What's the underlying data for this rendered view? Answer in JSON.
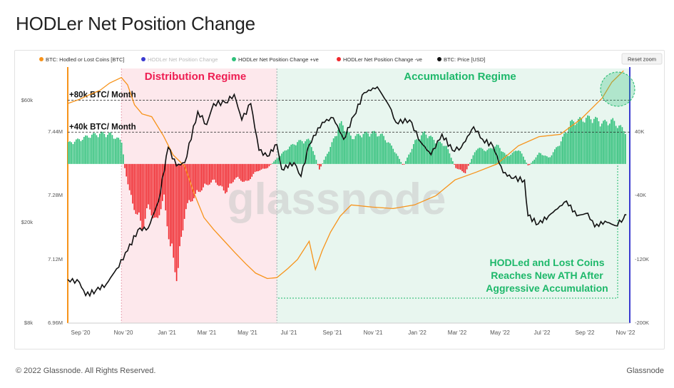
{
  "page": {
    "title": "HODLer Net Position Change",
    "footer_left": "© 2022 Glassnode. All Rights Reserved.",
    "footer_right": "Glassnode",
    "reset_zoom": "Reset zoom",
    "watermark": "glassnode"
  },
  "colors": {
    "hodl": "#f7931a",
    "pos": "#2fc07a",
    "neg": "#f0282d",
    "price": "#111111",
    "right_axis": "#3a3ad0",
    "dist_fill": "#fde8ec",
    "acc_fill": "#e8f6ef",
    "dist_text": "#ee1d52",
    "acc_text": "#1db86a"
  },
  "chart_data": {
    "type": "area",
    "legend": {
      "placement": "top-left",
      "items": [
        {
          "label": "BTC: Hodled or Lost Coins [BTC]",
          "color": "#f7931a"
        },
        {
          "label": "HODLer Net Position Change",
          "color": "#3a3ad0",
          "muted": true
        },
        {
          "label": "HODLer Net Position Change +ve",
          "color": "#2fc07a"
        },
        {
          "label": "HODLer Net Position Change -ve",
          "color": "#f0282d"
        },
        {
          "label": "BTC: Price [USD]",
          "color": "#111111"
        }
      ]
    },
    "x_ticks": [
      "Sep '20",
      "Nov '20",
      "Jan '21",
      "Mar '21",
      "May '21",
      "Jul '21",
      "Sep '21",
      "Nov '21",
      "Jan '22",
      "Mar '22",
      "May '22",
      "Jul '22",
      "Sep '22",
      "Nov '22"
    ],
    "xlim": [
      "2020-08-15",
      "2022-11-10"
    ],
    "left_axis_price": {
      "ticks": [
        "$60k",
        "$20k",
        "$8k"
      ],
      "scale": "log"
    },
    "left_axis_hodl": {
      "ticks": [
        "7.44M",
        "7.28M",
        "7.12M",
        "6.96M"
      ],
      "ylim": [
        6.96,
        7.52
      ]
    },
    "right_axis": {
      "ticks": [
        "40K",
        "-40K",
        "-120K",
        "-200K"
      ],
      "ylim": [
        -200000,
        120000
      ]
    },
    "reference_lines": [
      {
        "label": "+80k BTC/ Month",
        "value": 80000
      },
      {
        "label": "+40k BTC/ Month",
        "value": 40000
      }
    ],
    "regimes": [
      {
        "label": "Distribution Regime",
        "start": "2020-11-01",
        "end": "2021-06-15"
      },
      {
        "label": "Accumulation Regime",
        "start": "2021-06-15",
        "end": "2022-11-10"
      }
    ],
    "annotation": "HODLed and Lost Coins\nReaches New ATH After\nAggressive Accumulation",
    "series": [
      {
        "name": "BTC: Hodled or Lost Coins [BTC]",
        "axis": "hodl_millions",
        "points": [
          [
            "2020-08-15",
            7.443
          ],
          [
            "2020-09-01",
            7.452
          ],
          [
            "2020-09-15",
            7.462
          ],
          [
            "2020-10-01",
            7.472
          ],
          [
            "2020-10-15",
            7.488
          ],
          [
            "2020-11-01",
            7.5
          ],
          [
            "2020-11-10",
            7.484
          ],
          [
            "2020-11-20",
            7.44
          ],
          [
            "2020-12-01",
            7.42
          ],
          [
            "2020-12-15",
            7.414
          ],
          [
            "2021-01-01",
            7.372
          ],
          [
            "2021-01-15",
            7.33
          ],
          [
            "2021-02-01",
            7.305
          ],
          [
            "2021-02-15",
            7.244
          ],
          [
            "2021-03-01",
            7.192
          ],
          [
            "2021-03-15",
            7.166
          ],
          [
            "2021-04-01",
            7.138
          ],
          [
            "2021-04-15",
            7.115
          ],
          [
            "2021-05-01",
            7.09
          ],
          [
            "2021-05-15",
            7.07
          ],
          [
            "2021-06-01",
            7.058
          ],
          [
            "2021-06-15",
            7.06
          ],
          [
            "2021-07-01",
            7.08
          ],
          [
            "2021-07-15",
            7.1
          ],
          [
            "2021-08-01",
            7.14
          ],
          [
            "2021-08-10",
            7.078
          ],
          [
            "2021-08-20",
            7.12
          ],
          [
            "2021-09-01",
            7.16
          ],
          [
            "2021-09-15",
            7.195
          ],
          [
            "2021-10-01",
            7.22
          ],
          [
            "2021-11-01",
            7.215
          ],
          [
            "2021-12-01",
            7.212
          ],
          [
            "2022-01-01",
            7.22
          ],
          [
            "2022-02-01",
            7.24
          ],
          [
            "2022-03-01",
            7.275
          ],
          [
            "2022-04-01",
            7.292
          ],
          [
            "2022-05-01",
            7.31
          ],
          [
            "2022-06-01",
            7.35
          ],
          [
            "2022-07-01",
            7.37
          ],
          [
            "2022-08-01",
            7.375
          ],
          [
            "2022-09-01",
            7.41
          ],
          [
            "2022-10-01",
            7.455
          ],
          [
            "2022-10-15",
            7.49
          ],
          [
            "2022-11-01",
            7.515
          ]
        ]
      },
      {
        "name": "HODLer Net Position Change",
        "axis": "net_change_btc",
        "points": [
          [
            "2020-08-15",
            28000
          ],
          [
            "2020-09-01",
            33000
          ],
          [
            "2020-09-15",
            38000
          ],
          [
            "2020-10-01",
            41000
          ],
          [
            "2020-10-15",
            40000
          ],
          [
            "2020-11-01",
            30000
          ],
          [
            "2020-11-05",
            -5000
          ],
          [
            "2020-11-15",
            -50000
          ],
          [
            "2020-12-01",
            -85000
          ],
          [
            "2020-12-10",
            -55000
          ],
          [
            "2020-12-20",
            -80000
          ],
          [
            "2021-01-01",
            -45000
          ],
          [
            "2021-01-10",
            -110000
          ],
          [
            "2021-01-20",
            -150000
          ],
          [
            "2021-02-01",
            -60000
          ],
          [
            "2021-02-15",
            -42000
          ],
          [
            "2021-03-01",
            -30000
          ],
          [
            "2021-03-15",
            -22000
          ],
          [
            "2021-04-01",
            -38000
          ],
          [
            "2021-04-15",
            -18000
          ],
          [
            "2021-05-01",
            -25000
          ],
          [
            "2021-05-15",
            -10000
          ],
          [
            "2021-06-01",
            -5000
          ],
          [
            "2021-06-15",
            8000
          ],
          [
            "2021-07-01",
            22000
          ],
          [
            "2021-07-15",
            30000
          ],
          [
            "2021-08-01",
            32000
          ],
          [
            "2021-08-15",
            -8000
          ],
          [
            "2021-09-01",
            25000
          ],
          [
            "2021-09-15",
            55000
          ],
          [
            "2021-10-01",
            35000
          ],
          [
            "2021-10-15",
            40000
          ],
          [
            "2021-11-01",
            42000
          ],
          [
            "2021-11-15",
            38000
          ],
          [
            "2021-12-01",
            20000
          ],
          [
            "2021-12-15",
            -3000
          ],
          [
            "2022-01-01",
            30000
          ],
          [
            "2022-01-15",
            42000
          ],
          [
            "2022-02-01",
            30000
          ],
          [
            "2022-02-15",
            25000
          ],
          [
            "2022-03-01",
            -5000
          ],
          [
            "2022-03-15",
            -12000
          ],
          [
            "2022-04-01",
            22000
          ],
          [
            "2022-04-15",
            18000
          ],
          [
            "2022-05-01",
            25000
          ],
          [
            "2022-05-15",
            10000
          ],
          [
            "2022-06-01",
            20000
          ],
          [
            "2022-06-15",
            -3000
          ],
          [
            "2022-07-01",
            15000
          ],
          [
            "2022-07-15",
            8000
          ],
          [
            "2022-08-01",
            30000
          ],
          [
            "2022-08-15",
            55000
          ],
          [
            "2022-09-01",
            60000
          ],
          [
            "2022-09-15",
            62000
          ],
          [
            "2022-10-01",
            55000
          ],
          [
            "2022-10-15",
            58000
          ],
          [
            "2022-11-01",
            45000
          ]
        ]
      },
      {
        "name": "BTC: Price [USD]",
        "axis": "price_usd_log",
        "points": [
          [
            "2020-08-15",
            11800
          ],
          [
            "2020-09-01",
            11500
          ],
          [
            "2020-09-10",
            10200
          ],
          [
            "2020-09-25",
            10700
          ],
          [
            "2020-10-10",
            11300
          ],
          [
            "2020-10-25",
            13000
          ],
          [
            "2020-11-10",
            15300
          ],
          [
            "2020-11-25",
            18500
          ],
          [
            "2020-12-10",
            18800
          ],
          [
            "2020-12-25",
            24000
          ],
          [
            "2021-01-08",
            39000
          ],
          [
            "2021-01-20",
            33000
          ],
          [
            "2021-02-01",
            34000
          ],
          [
            "2021-02-20",
            54000
          ],
          [
            "2021-03-05",
            48000
          ],
          [
            "2021-03-15",
            58000
          ],
          [
            "2021-04-01",
            58500
          ],
          [
            "2021-04-14",
            63000
          ],
          [
            "2021-04-25",
            50000
          ],
          [
            "2021-05-08",
            58000
          ],
          [
            "2021-05-20",
            38000
          ],
          [
            "2021-06-01",
            36000
          ],
          [
            "2021-06-15",
            40000
          ],
          [
            "2021-06-22",
            32000
          ],
          [
            "2021-07-10",
            34000
          ],
          [
            "2021-07-20",
            30000
          ],
          [
            "2021-08-01",
            40000
          ],
          [
            "2021-08-20",
            49000
          ],
          [
            "2021-09-05",
            51000
          ],
          [
            "2021-09-20",
            42000
          ],
          [
            "2021-10-05",
            52000
          ],
          [
            "2021-10-20",
            64000
          ],
          [
            "2021-11-08",
            67500
          ],
          [
            "2021-11-25",
            57000
          ],
          [
            "2021-12-05",
            49000
          ],
          [
            "2021-12-25",
            50000
          ],
          [
            "2022-01-10",
            41000
          ],
          [
            "2022-01-25",
            36500
          ],
          [
            "2022-02-10",
            44000
          ],
          [
            "2022-02-25",
            38000
          ],
          [
            "2022-03-10",
            39000
          ],
          [
            "2022-03-28",
            47000
          ],
          [
            "2022-04-10",
            42000
          ],
          [
            "2022-04-25",
            39500
          ],
          [
            "2022-05-10",
            31000
          ],
          [
            "2022-05-25",
            29500
          ],
          [
            "2022-06-10",
            29000
          ],
          [
            "2022-06-15",
            21000
          ],
          [
            "2022-06-30",
            19500
          ],
          [
            "2022-07-15",
            21000
          ],
          [
            "2022-08-10",
            24000
          ],
          [
            "2022-08-25",
            21000
          ],
          [
            "2022-09-10",
            21500
          ],
          [
            "2022-09-20",
            19000
          ],
          [
            "2022-10-05",
            20000
          ],
          [
            "2022-10-20",
            19200
          ],
          [
            "2022-11-01",
            20500
          ],
          [
            "2022-11-05",
            21200
          ]
        ]
      }
    ]
  }
}
